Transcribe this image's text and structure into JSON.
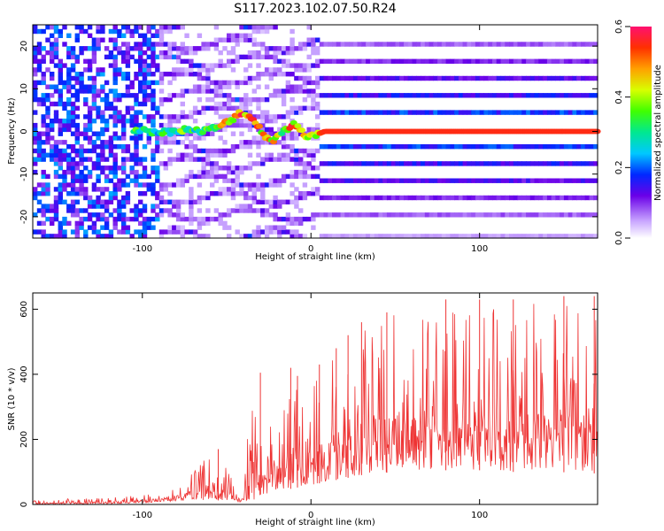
{
  "title": "S117.2023.102.07.50.R24",
  "chart_data": [
    {
      "type": "heatmap",
      "xlabel": "Height of straight line (km)",
      "ylabel": "Frequency (Hz)",
      "xlim": [
        -165,
        170
      ],
      "ylim": [
        -25,
        25
      ],
      "xticks": [
        -100,
        0,
        100
      ],
      "yticks": [
        -20,
        -10,
        0,
        10,
        20
      ],
      "colorbar": {
        "label": "Normalized spectral amplitude",
        "range": [
          0.0,
          0.6
        ],
        "ticks": [
          "0.0",
          "0.2",
          "0.4",
          "0.6"
        ]
      },
      "harmonic_bands_hz": [
        -25,
        -20,
        -16,
        -12,
        -8,
        -4,
        0,
        4,
        8,
        12,
        16,
        20,
        25
      ],
      "ridge": {
        "x": [
          -105,
          -95,
          -85,
          -75,
          -65,
          -55,
          -48,
          -42,
          -36,
          -30,
          -26,
          -22,
          -18,
          -14,
          -10,
          -6,
          -2,
          2,
          8,
          20,
          60,
          100,
          140,
          170
        ],
        "y": [
          0.5,
          0.0,
          -0.2,
          0.5,
          0.0,
          1.0,
          2.5,
          4.5,
          3.5,
          0.5,
          -1.5,
          -2.0,
          -0.5,
          0.5,
          2.0,
          0.5,
          -1.5,
          -1.0,
          0.0,
          0.0,
          0.0,
          0.0,
          0.0,
          0.0
        ],
        "amplitude": [
          0.35,
          0.3,
          0.3,
          0.35,
          0.3,
          0.4,
          0.45,
          0.5,
          0.5,
          0.45,
          0.45,
          0.5,
          0.4,
          0.45,
          0.5,
          0.45,
          0.5,
          0.5,
          0.55,
          0.55,
          0.55,
          0.55,
          0.55,
          0.55
        ]
      }
    },
    {
      "type": "line",
      "xlabel": "Height of straight line (km)",
      "ylabel": "SNR (10 * v/v)",
      "xlim": [
        -165,
        170
      ],
      "ylim": [
        0,
        650
      ],
      "xticks": [
        -100,
        0,
        100
      ],
      "yticks": [
        0,
        200,
        400,
        600
      ],
      "color": "#ee3333",
      "envelope": {
        "x": [
          -165,
          -120,
          -100,
          -90,
          -80,
          -70,
          -60,
          -50,
          -45,
          -40,
          -35,
          -30,
          -25,
          -20,
          -15,
          -10,
          -5,
          0,
          5,
          10,
          15,
          20,
          25,
          30,
          40,
          50,
          60,
          80,
          100,
          120,
          140,
          160,
          170
        ],
        "low": [
          0,
          2,
          5,
          8,
          10,
          12,
          15,
          10,
          8,
          5,
          10,
          30,
          35,
          40,
          45,
          50,
          55,
          60,
          65,
          70,
          75,
          80,
          85,
          90,
          95,
          100,
          105,
          105,
          105,
          100,
          100,
          98,
          95
        ],
        "high": [
          15,
          20,
          30,
          40,
          60,
          100,
          160,
          120,
          60,
          40,
          390,
          200,
          260,
          280,
          320,
          420,
          330,
          360,
          400,
          440,
          500,
          540,
          560,
          570,
          580,
          600,
          600,
          610,
          620,
          620,
          620,
          610,
          600
        ],
        "spikes": [
          [
            -55,
            170
          ],
          [
            -30,
            405
          ],
          [
            -12,
            420
          ],
          [
            -8,
            395
          ],
          [
            5,
            430
          ],
          [
            15,
            480
          ],
          [
            22,
            520
          ],
          [
            30,
            560
          ],
          [
            45,
            590
          ],
          [
            80,
            630
          ],
          [
            100,
            630
          ],
          [
            120,
            630
          ],
          [
            150,
            640
          ],
          [
            168,
            640
          ]
        ]
      }
    }
  ]
}
